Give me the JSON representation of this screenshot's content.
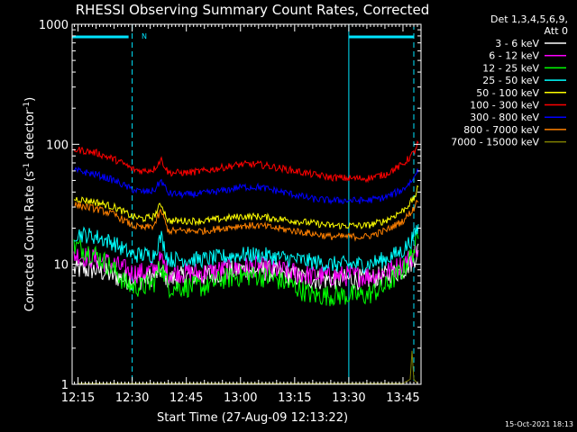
{
  "chart_data": {
    "type": "line",
    "title": "RHESSI Observing Summary Count Rates, Corrected",
    "xlabel": "Start Time (27-Aug-09 12:13:22)",
    "ylabel_main": "Corrected Count Rate (s",
    "ylabel_sup1": "-1",
    "ylabel_mid": " detector",
    "ylabel_sup2": "-1",
    "ylabel_end": ")",
    "y_scale": "log",
    "ylim": [
      1,
      1000
    ],
    "xlim": [
      "12:13:22",
      "13:50:00"
    ],
    "x_ticks": [
      "12:15",
      "12:30",
      "12:45",
      "13:00",
      "13:15",
      "13:30",
      "13:45"
    ],
    "y_ticks": [
      "1",
      "10",
      "100",
      "1000"
    ],
    "legend_header_1": "Det 1,3,4,5,6,9,",
    "legend_header_2": "Att 0",
    "legend_position": "right",
    "timestamp": "15-Oct-2021 18:13",
    "annotation_n": "N",
    "series": [
      {
        "name": "3 - 6 keV",
        "color": "#ffffff",
        "x": [
          "12:15",
          "12:20",
          "12:25",
          "12:28",
          "12:30",
          "12:33",
          "12:36",
          "12:38",
          "12:40",
          "12:45",
          "12:50",
          "12:55",
          "13:00",
          "13:05",
          "13:10",
          "13:15",
          "13:20",
          "13:25",
          "13:30",
          "13:35",
          "13:40",
          "13:45",
          "13:48",
          "13:49"
        ],
        "values": [
          9,
          9,
          8,
          7.5,
          7.5,
          7.5,
          8,
          9,
          7.5,
          8,
          8,
          8.5,
          9,
          9,
          8.5,
          8,
          7.5,
          7.5,
          7.5,
          7.5,
          8,
          9,
          11,
          13
        ]
      },
      {
        "name": "6 - 12 keV",
        "color": "#ff00ff",
        "x": [
          "12:15",
          "12:20",
          "12:25",
          "12:28",
          "12:30",
          "12:33",
          "12:36",
          "12:38",
          "12:40",
          "12:45",
          "12:50",
          "12:55",
          "13:00",
          "13:05",
          "13:10",
          "13:15",
          "13:20",
          "13:25",
          "13:30",
          "13:35",
          "13:40",
          "13:45",
          "13:48",
          "13:49"
        ],
        "values": [
          12,
          11,
          10,
          9,
          8.5,
          8.5,
          9,
          11,
          8.5,
          8.5,
          8.5,
          9,
          9.5,
          9.5,
          9,
          8.5,
          8,
          8,
          8,
          8,
          8.5,
          10,
          12,
          14
        ]
      },
      {
        "name": "12 - 25 keV",
        "color": "#00ff00",
        "x": [
          "12:15",
          "12:20",
          "12:25",
          "12:28",
          "12:30",
          "12:33",
          "12:36",
          "12:38",
          "12:40",
          "12:45",
          "12:50",
          "12:55",
          "13:00",
          "13:05",
          "13:10",
          "13:15",
          "13:20",
          "13:25",
          "13:30",
          "13:35",
          "13:40",
          "13:45",
          "13:48",
          "13:49"
        ],
        "values": [
          14,
          12,
          9,
          7,
          6.5,
          6.5,
          7,
          10,
          6.5,
          6.5,
          6.5,
          7.5,
          8,
          8,
          7.5,
          6.5,
          5.5,
          5.5,
          5.5,
          5.5,
          6.5,
          9,
          13,
          16
        ]
      },
      {
        "name": "25 - 50 keV",
        "color": "#00ffff",
        "x": [
          "12:15",
          "12:20",
          "12:25",
          "12:28",
          "12:30",
          "12:33",
          "12:36",
          "12:38",
          "12:40",
          "12:45",
          "12:50",
          "12:55",
          "13:00",
          "13:05",
          "13:10",
          "13:15",
          "13:20",
          "13:25",
          "13:30",
          "13:35",
          "13:40",
          "13:45",
          "13:48",
          "13:49"
        ],
        "values": [
          18,
          17,
          15,
          13,
          12,
          12,
          12,
          17,
          11,
          11,
          11,
          11.5,
          12,
          12,
          11.5,
          11,
          10.5,
          10,
          10,
          10,
          11,
          13,
          17,
          20
        ]
      },
      {
        "name": "50 - 100 keV",
        "color": "#ffff00",
        "x": [
          "12:15",
          "12:20",
          "12:25",
          "12:28",
          "12:30",
          "12:33",
          "12:36",
          "12:38",
          "12:40",
          "12:45",
          "12:50",
          "12:55",
          "13:00",
          "13:05",
          "13:10",
          "13:15",
          "13:20",
          "13:25",
          "13:30",
          "13:35",
          "13:40",
          "13:45",
          "13:48",
          "13:49"
        ],
        "values": [
          35,
          33,
          30,
          27,
          25,
          24,
          25,
          32,
          23,
          23,
          23,
          24,
          25,
          25,
          24,
          23,
          22,
          21,
          21,
          21,
          23,
          28,
          35,
          42
        ]
      },
      {
        "name": "100 - 300 keV",
        "color": "#ff0000",
        "x": [
          "12:15",
          "12:20",
          "12:25",
          "12:28",
          "12:30",
          "12:33",
          "12:36",
          "12:38",
          "12:40",
          "12:45",
          "12:50",
          "12:55",
          "13:00",
          "13:05",
          "13:10",
          "13:15",
          "13:20",
          "13:25",
          "13:30",
          "13:35",
          "13:40",
          "13:45",
          "13:48",
          "13:49"
        ],
        "values": [
          90,
          85,
          75,
          68,
          62,
          60,
          62,
          75,
          58,
          58,
          60,
          64,
          68,
          68,
          64,
          60,
          56,
          53,
          52,
          52,
          56,
          68,
          85,
          100
        ]
      },
      {
        "name": "300 - 800 keV",
        "color": "#0000ff",
        "x": [
          "12:15",
          "12:20",
          "12:25",
          "12:28",
          "12:30",
          "12:33",
          "12:36",
          "12:38",
          "12:40",
          "12:45",
          "12:50",
          "12:55",
          "13:00",
          "13:05",
          "13:10",
          "13:15",
          "13:20",
          "13:25",
          "13:30",
          "13:35",
          "13:40",
          "13:45",
          "13:48",
          "13:49"
        ],
        "values": [
          60,
          56,
          50,
          45,
          42,
          40,
          41,
          50,
          39,
          38,
          39,
          41,
          44,
          44,
          41,
          38,
          35,
          34,
          34,
          34,
          36,
          42,
          52,
          62
        ]
      },
      {
        "name": "800 - 7000 keV",
        "color": "#ff8000",
        "x": [
          "12:15",
          "12:20",
          "12:25",
          "12:28",
          "12:30",
          "12:33",
          "12:36",
          "12:38",
          "12:40",
          "12:45",
          "12:50",
          "12:55",
          "13:00",
          "13:05",
          "13:10",
          "13:15",
          "13:20",
          "13:25",
          "13:30",
          "13:35",
          "13:40",
          "13:45",
          "13:48",
          "13:49"
        ],
        "values": [
          31,
          29,
          26,
          23,
          21,
          20,
          21,
          28,
          19,
          19,
          19,
          20,
          21,
          21,
          20,
          19,
          18,
          17,
          17,
          17,
          19,
          23,
          29,
          35
        ]
      },
      {
        "name": "7000 - 15000 keV",
        "color": "#808000",
        "x": [
          "12:15",
          "12:30",
          "12:45",
          "13:00",
          "13:15",
          "13:30",
          "13:45",
          "13:47",
          "13:47.5",
          "13:48",
          "13:49"
        ],
        "values": [
          1,
          1,
          1,
          1,
          1,
          1,
          1,
          1.1,
          1.9,
          1.1,
          1
        ]
      }
    ],
    "vertical_lines": [
      {
        "x": "12:30",
        "style": "dashed"
      },
      {
        "x": "13:30",
        "style": "solid"
      },
      {
        "x": "13:48",
        "style": "dashed"
      }
    ],
    "top_bars": [
      {
        "from": "12:13:22",
        "to": "12:29"
      },
      {
        "from": "13:30",
        "to": "13:48"
      }
    ]
  }
}
